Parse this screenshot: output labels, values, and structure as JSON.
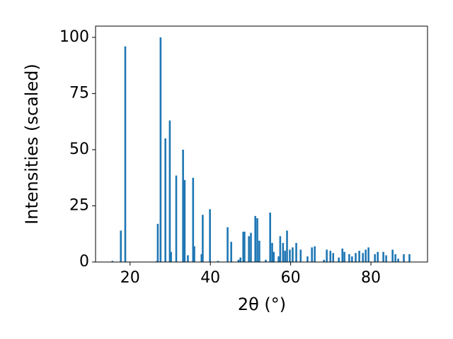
{
  "chart_data": {
    "type": "bar",
    "x_label": "2θ (°)",
    "y_label": "Intensities (scaled)",
    "color": "#1f77b4",
    "x": [
      15.6,
      17.7,
      18.8,
      26.7,
      26.9,
      27.6,
      28.8,
      29.9,
      30.2,
      31.5,
      33.2,
      33.6,
      34.4,
      35.7,
      36.0,
      37.8,
      38.1,
      39.9,
      41.9,
      44.3,
      45.2,
      47.0,
      47.5,
      48.2,
      48.5,
      49.6,
      50.1,
      51.2,
      51.7,
      52.2,
      53.8,
      54.9,
      55.4,
      55.8,
      57.0,
      57.4,
      58.1,
      58.6,
      59.1,
      59.8,
      60.5,
      61.4,
      62.5,
      64.2,
      65.3,
      66.0,
      68.3,
      69.0,
      69.9,
      70.6,
      72.0,
      72.9,
      73.4,
      74.6,
      75.3,
      76.2,
      77.1,
      78.0,
      78.7,
      79.4,
      81.0,
      81.7,
      83.1,
      83.8,
      85.4,
      86.1,
      86.8,
      88.2,
      89.6
    ],
    "values": [
      0.5,
      14,
      96,
      0.5,
      17,
      100,
      55,
      63,
      4.5,
      38.5,
      50,
      36.5,
      3,
      37.5,
      7,
      3.5,
      21,
      23.5,
      0.5,
      15.5,
      9,
      1,
      2,
      13.5,
      13.5,
      11.5,
      13,
      20.5,
      19.5,
      9.5,
      1,
      22,
      8.5,
      4.5,
      2.5,
      11.5,
      8.5,
      5,
      14,
      5.5,
      6.5,
      8.5,
      5.5,
      2.5,
      6.5,
      7,
      1,
      5.5,
      5,
      4,
      2,
      6,
      4.5,
      3.5,
      2.5,
      4,
      5,
      4,
      5.5,
      6.5,
      3.5,
      4.5,
      4.5,
      3,
      5.5,
      3.5,
      1.5,
      3.5,
      3.5
    ],
    "xlim": [
      11.4,
      94.1
    ],
    "ylim": [
      0,
      105
    ],
    "xticks": [
      20,
      40,
      60,
      80
    ],
    "yticks": [
      0,
      25,
      50,
      75,
      100
    ]
  }
}
